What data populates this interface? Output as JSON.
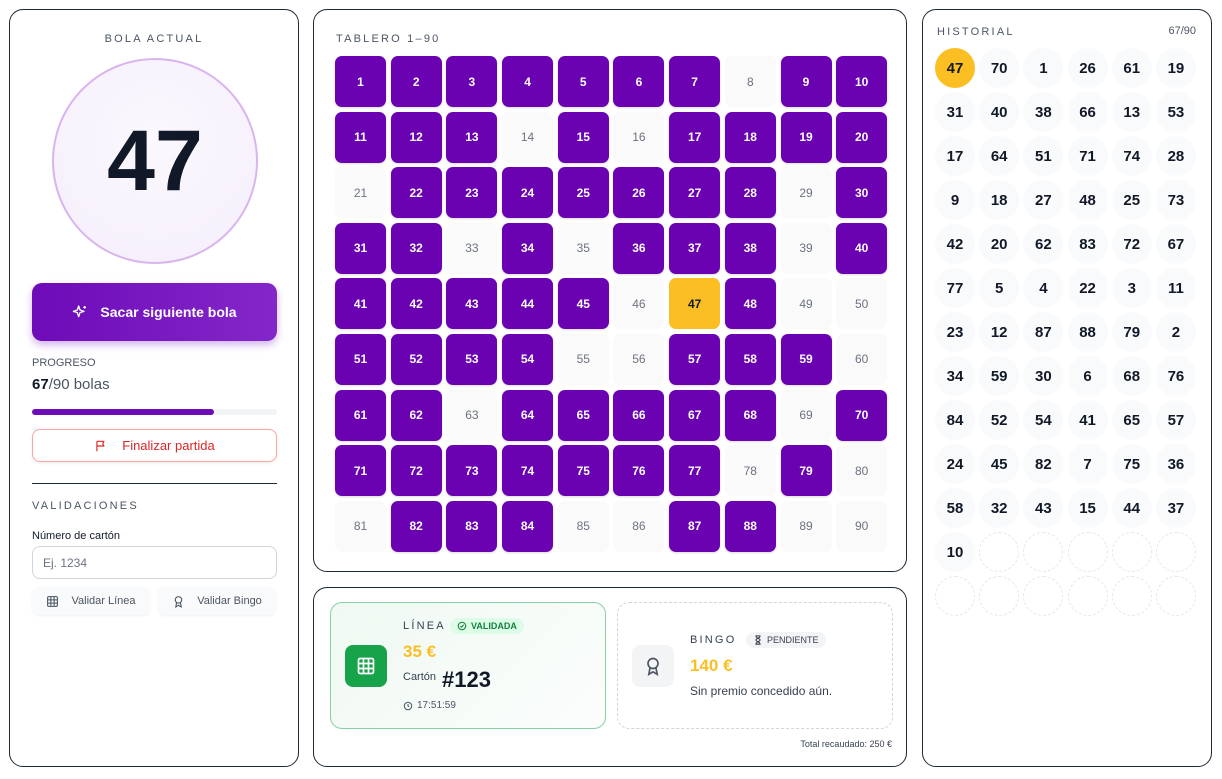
{
  "left": {
    "current_label": "BOLA ACTUAL",
    "current_ball": "47",
    "draw_button": "Sacar siguiente bola",
    "progress_label": "PROGRESO",
    "progress_drawn": "67",
    "progress_total": "/90 bolas",
    "progress_fraction": 0.744,
    "end_button": "Finalizar partida",
    "validations_label": "VALIDACIONES",
    "card_label": "Número de cartón",
    "card_placeholder": "Ej. 1234",
    "validate_line": "Validar Línea",
    "validate_bingo": "Validar Bingo"
  },
  "board": {
    "label": "TABLERO 1–90",
    "numbers": [
      1,
      2,
      3,
      4,
      5,
      6,
      7,
      8,
      9,
      10,
      11,
      12,
      13,
      14,
      15,
      16,
      17,
      18,
      19,
      20,
      21,
      22,
      23,
      24,
      25,
      26,
      27,
      28,
      29,
      30,
      31,
      32,
      33,
      34,
      35,
      36,
      37,
      38,
      39,
      40,
      41,
      42,
      43,
      44,
      45,
      46,
      47,
      48,
      49,
      50,
      51,
      52,
      53,
      54,
      55,
      56,
      57,
      58,
      59,
      60,
      61,
      62,
      63,
      64,
      65,
      66,
      67,
      68,
      69,
      70,
      71,
      72,
      73,
      74,
      75,
      76,
      77,
      78,
      79,
      80,
      81,
      82,
      83,
      84,
      85,
      86,
      87,
      88,
      89,
      90
    ],
    "drawn": [
      47,
      70,
      1,
      26,
      61,
      19,
      31,
      40,
      38,
      66,
      13,
      53,
      17,
      64,
      51,
      71,
      74,
      28,
      9,
      18,
      27,
      48,
      25,
      73,
      42,
      20,
      62,
      83,
      72,
      67,
      77,
      5,
      4,
      22,
      3,
      11,
      23,
      12,
      87,
      88,
      79,
      2,
      34,
      59,
      30,
      6,
      68,
      76,
      84,
      52,
      54,
      41,
      65,
      57,
      24,
      45,
      82,
      7,
      75,
      36,
      58,
      32,
      43,
      15,
      44,
      37,
      10
    ],
    "current": 47
  },
  "prizes": {
    "line": {
      "title": "LÍNEA",
      "badge": "VALIDADA",
      "amount": "35 €",
      "card_label": "Cartón",
      "card_number": "#123",
      "time": "17:51:59",
      "accent": "#16a34a"
    },
    "bingo": {
      "title": "BINGO",
      "badge": "PENDIENTE",
      "amount": "140 €",
      "note": "Sin premio concedido aún."
    },
    "total": "Total recaudado: 250 €"
  },
  "history": {
    "label": "HISTORIAL",
    "count": "67/90",
    "slots": 78,
    "balls": [
      47,
      70,
      1,
      26,
      61,
      19,
      31,
      40,
      38,
      66,
      13,
      53,
      17,
      64,
      51,
      71,
      74,
      28,
      9,
      18,
      27,
      48,
      25,
      73,
      42,
      20,
      62,
      83,
      72,
      67,
      77,
      5,
      4,
      22,
      3,
      11,
      23,
      12,
      87,
      88,
      79,
      2,
      34,
      59,
      30,
      6,
      68,
      76,
      84,
      52,
      54,
      41,
      65,
      57,
      24,
      45,
      82,
      7,
      75,
      36,
      58,
      32,
      43,
      15,
      44,
      37,
      10
    ]
  },
  "colors": {
    "accent": "#6a02b2",
    "current": "#fbbf24",
    "danger": "#dc2626",
    "success": "#16a34a"
  }
}
